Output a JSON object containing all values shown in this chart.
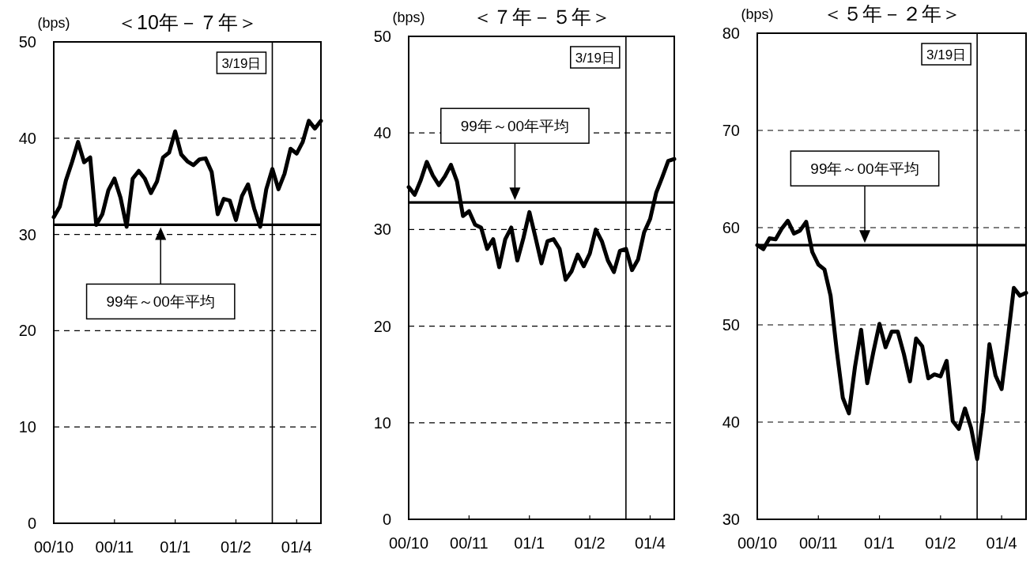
{
  "chart_data": [
    {
      "type": "line",
      "title": "＜10年－７年＞",
      "ylabel": "(bps)",
      "ylim": [
        0,
        50
      ],
      "yticks": [
        0,
        10,
        20,
        30,
        40,
        50
      ],
      "grid": "y",
      "categories": [
        "00/10",
        null,
        null,
        null,
        null,
        null,
        null,
        null,
        null,
        null,
        "00/11",
        null,
        null,
        null,
        null,
        null,
        null,
        null,
        null,
        null,
        "01/1",
        null,
        null,
        null,
        null,
        null,
        null,
        null,
        null,
        null,
        "01/2",
        null,
        null,
        null,
        null,
        null,
        null,
        null,
        null,
        null,
        "01/4",
        null,
        null,
        null,
        null
      ],
      "series": [
        {
          "color": "#000000",
          "values": [
            31.8,
            32.9,
            35.6,
            37.5,
            39.6,
            37.5,
            38.0,
            31.0,
            32.1,
            34.6,
            35.8,
            33.8,
            30.8,
            35.8,
            36.6,
            35.8,
            34.3,
            35.5,
            38.0,
            38.5,
            40.7,
            38.3,
            37.6,
            37.2,
            37.8,
            37.9,
            36.5,
            32.1,
            33.7,
            33.5,
            31.5,
            34.0,
            35.2,
            32.7,
            30.8,
            34.7,
            36.8,
            34.7,
            36.3,
            38.9,
            38.4,
            39.6,
            41.8,
            41.0,
            41.8
          ]
        }
      ],
      "ref_lines": [
        {
          "axis": "y",
          "value": 31,
          "label": "99年～00年平均"
        }
      ],
      "annotations": [
        "3/19日"
      ]
    },
    {
      "type": "line",
      "title": "＜７年－５年＞",
      "ylabel": "(bps)",
      "ylim": [
        0,
        50
      ],
      "yticks": [
        0,
        10,
        20,
        30,
        40,
        50
      ],
      "grid": "y",
      "categories": [
        "00/10",
        null,
        null,
        null,
        null,
        null,
        null,
        null,
        null,
        null,
        "00/11",
        null,
        null,
        null,
        null,
        null,
        null,
        null,
        null,
        null,
        "01/1",
        null,
        null,
        null,
        null,
        null,
        null,
        null,
        null,
        null,
        "01/2",
        null,
        null,
        null,
        null,
        null,
        null,
        null,
        null,
        null,
        "01/4",
        null,
        null,
        null,
        null
      ],
      "series": [
        {
          "color": "#000000",
          "values": [
            34.4,
            33.6,
            35.1,
            37.0,
            35.6,
            34.6,
            35.5,
            36.7,
            35.0,
            31.4,
            31.9,
            30.5,
            30.2,
            28.0,
            29.0,
            26.1,
            29.0,
            30.2,
            26.8,
            29.1,
            31.8,
            29.2,
            26.5,
            28.8,
            29.0,
            28.0,
            24.8,
            25.7,
            27.4,
            26.2,
            27.5,
            30.0,
            28.8,
            26.8,
            25.6,
            27.8,
            28.0,
            25.8,
            26.9,
            29.7,
            31.1,
            33.8,
            35.4,
            37.1,
            37.3
          ]
        }
      ],
      "ref_lines": [
        {
          "axis": "y",
          "value": 32.8,
          "label": "99年～00年平均"
        }
      ],
      "annotations": [
        "3/19日"
      ]
    },
    {
      "type": "line",
      "title": "＜５年－２年＞",
      "ylabel": "(bps)",
      "ylim": [
        30,
        80
      ],
      "yticks": [
        30,
        40,
        50,
        60,
        70,
        80
      ],
      "grid": "y",
      "categories": [
        "00/10",
        null,
        null,
        null,
        null,
        null,
        null,
        null,
        null,
        null,
        "00/11",
        null,
        null,
        null,
        null,
        null,
        null,
        null,
        null,
        null,
        "01/1",
        null,
        null,
        null,
        null,
        null,
        null,
        null,
        null,
        null,
        "01/2",
        null,
        null,
        null,
        null,
        null,
        null,
        null,
        null,
        null,
        "01/4",
        null,
        null,
        null,
        null
      ],
      "series": [
        {
          "color": "#000000",
          "values": [
            58.2,
            57.8,
            58.9,
            58.8,
            59.9,
            60.7,
            59.4,
            59.7,
            60.6,
            57.5,
            56.2,
            55.7,
            53.0,
            47.4,
            42.5,
            40.9,
            45.7,
            49.5,
            44.0,
            47.2,
            50.1,
            47.7,
            49.3,
            49.3,
            47.0,
            44.2,
            48.6,
            47.8,
            44.5,
            44.9,
            44.7,
            46.3,
            40.1,
            39.3,
            41.4,
            39.4,
            36.2,
            41.0,
            48.0,
            44.8,
            43.4,
            48.5,
            53.8,
            53.0,
            53.3
          ]
        }
      ],
      "ref_lines": [
        {
          "axis": "y",
          "value": 58.2,
          "label": "99年～00年平均"
        }
      ],
      "annotations": [
        "3/19日"
      ]
    }
  ]
}
